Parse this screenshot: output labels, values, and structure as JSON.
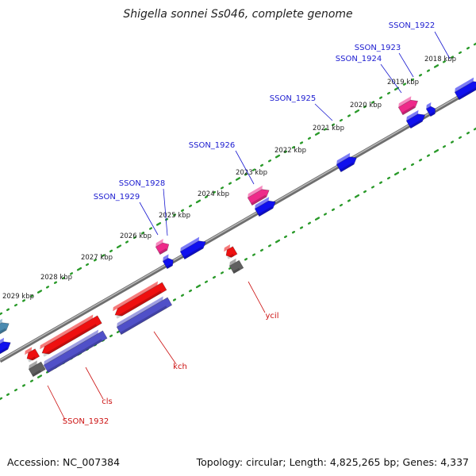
{
  "title": "Shigella sonnei Ss046, complete genome",
  "footer": {
    "accession": "Accession: NC_007384",
    "summary": "Topology: circular; Length: 4,825,265 bp; Genes: 4,337"
  },
  "ticks": [
    "2018 kbp",
    "2019 kbp",
    "2020 kbp",
    "2021 kbp",
    "2022 kbp",
    "2023 kbp",
    "2024 kbp",
    "2025 kbp",
    "2026 kbp",
    "2027 kbp",
    "2028 kbp",
    "2029 kbp"
  ],
  "top_labels": [
    "SSON_1922",
    "SSON_1923",
    "SSON_1924",
    "SSON_1925",
    "SSON_1926",
    "SSON_1928",
    "SSON_1929"
  ],
  "bottom_labels": [
    "ycil",
    "kch",
    "cls",
    "SSON_1932"
  ],
  "colors": {
    "backbone": "#8a8a8a",
    "forward_gene": "#1010ee",
    "pink_gene": "#ee2a8a",
    "reverse_gene": "#ee1010",
    "purple_gene": "#5050c8",
    "gray_gene": "#606060",
    "steel_gene": "#4a8ab0",
    "top_label": "#1a1ad0",
    "bottom_label": "#cc1010",
    "dots": "#2a9a2a"
  }
}
